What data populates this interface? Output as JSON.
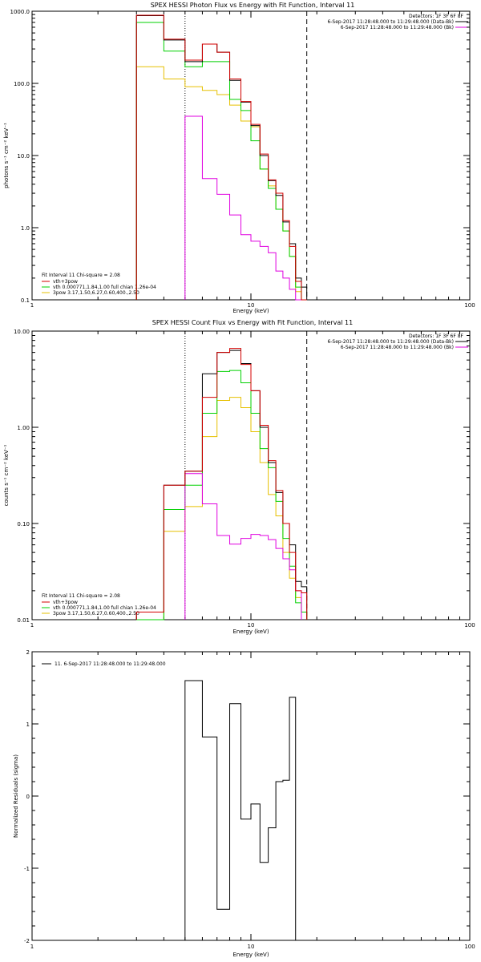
{
  "colors": {
    "data": "#000000",
    "total": "#d40000",
    "vth": "#00d000",
    "pow": "#e6c000",
    "bk": "#e000e0",
    "axis": "#000000"
  },
  "panels": [
    {
      "title": "SPEX HESSI Photon Flux vs Energy with Fit Function, Interval 11",
      "ylabel": "photons s⁻¹ cm⁻² keV⁻¹",
      "yticks": [
        "0.1",
        "1.0",
        "10.0",
        "100.0",
        "1000.0"
      ]
    },
    {
      "title": "SPEX HESSI Count Flux vs Energy with Fit Function, Interval 11",
      "ylabel": "counts s⁻¹ cm⁻² keV⁻¹",
      "yticks": [
        "0.01",
        "0.10",
        "1.00",
        "10.00"
      ]
    },
    {
      "title": "",
      "ylabel": "Normalized Residuals (sigma)",
      "yticks": [
        "-2",
        "-1",
        "0",
        "1",
        "2"
      ]
    }
  ],
  "xaxis": {
    "label": "Energy (keV)",
    "ticks": [
      "1",
      "10",
      "100"
    ]
  },
  "legend_top": {
    "detectors": "Detectors: 1F 3F 6F 8F",
    "line1": "6-Sep-2017 11:28:48.000 to 11:29:48.000 (Data-Bk)",
    "line2": "6-Sep-2017 11:28:48.000 to 11:29:48.000 (Bk)"
  },
  "legend_fit": {
    "header": "Fit Interval 11    Chi-square = 2.08",
    "l1": "vth+3pow",
    "l2": "vth 0.000771,1.84,1.00   full chian 1.26e-04",
    "l3": "3pow 3.17,1.50,6.27,0.60,400.,2.50"
  },
  "legend_resid": "11.   6-Sep-2017 11:28:48.000 to 11:29:48.000",
  "chart_data": [
    {
      "type": "line",
      "title": "SPEX HESSI Photon Flux vs Energy with Fit Function, Interval 11",
      "xlabel": "Energy (keV)",
      "ylabel": "photons s-1 cm-2 keV-1",
      "xscale": "log",
      "yscale": "log",
      "xlim": [
        1,
        100
      ],
      "ylim": [
        0.1,
        1000
      ],
      "bin_edges": [
        3.0,
        4.0,
        5.0,
        6.0,
        7.0,
        8.0,
        9.0,
        10.0,
        11.0,
        12.0,
        13.0,
        14.0,
        15.0,
        16.0,
        17.0,
        18.0
      ],
      "series": [
        {
          "name": "Data-Bk",
          "key": "data",
          "values": [
            870,
            400,
            200,
            350,
            270,
            110,
            55,
            26,
            10,
            4.5,
            2.8,
            1.2,
            0.6,
            0.2,
            0.15
          ]
        },
        {
          "name": "vth+3pow",
          "key": "total",
          "values": [
            880,
            410,
            210,
            350,
            270,
            115,
            56,
            27,
            10.5,
            4.6,
            3.0,
            1.25,
            0.55,
            0.18,
            0.1
          ]
        },
        {
          "name": "vth",
          "key": "vth",
          "values": [
            700,
            280,
            170,
            200,
            200,
            60,
            42,
            16,
            6.5,
            3.5,
            1.8,
            0.9,
            0.4,
            0.15,
            0.08
          ]
        },
        {
          "name": "3pow",
          "key": "pow",
          "values": [
            170,
            115,
            90,
            80,
            70,
            50,
            30,
            25,
            6.5,
            3.8,
            1.8,
            0.9,
            0.4,
            0.13,
            0.08
          ]
        },
        {
          "name": "Bk",
          "key": "bk",
          "values": [
            null,
            null,
            35,
            4.8,
            2.9,
            1.5,
            0.8,
            0.65,
            0.55,
            0.45,
            0.25,
            0.2,
            0.14,
            0.1,
            null
          ]
        }
      ],
      "vlines": [
        {
          "x": 5.0,
          "style": "dotted"
        },
        {
          "x": 18.0,
          "style": "dashed"
        }
      ]
    },
    {
      "type": "line",
      "title": "SPEX HESSI Count Flux vs Energy with Fit Function, Interval 11",
      "xlabel": "Energy (keV)",
      "ylabel": "counts s-1 cm-2 keV-1",
      "xscale": "log",
      "yscale": "log",
      "xlim": [
        1,
        100
      ],
      "ylim": [
        0.01,
        10
      ],
      "bin_edges": [
        3.0,
        4.0,
        5.0,
        6.0,
        7.0,
        8.0,
        9.0,
        10.0,
        11.0,
        12.0,
        13.0,
        14.0,
        15.0,
        16.0,
        17.0,
        18.0
      ],
      "series": [
        {
          "name": "Data-Bk",
          "key": "data",
          "values": [
            0.012,
            0.25,
            0.35,
            3.6,
            6.0,
            6.3,
            4.6,
            2.4,
            1.0,
            0.43,
            0.21,
            0.1,
            0.06,
            0.025,
            0.022
          ]
        },
        {
          "name": "vth+3pow",
          "key": "total",
          "values": [
            0.012,
            0.25,
            0.35,
            2.05,
            6.0,
            6.6,
            4.5,
            2.4,
            1.05,
            0.45,
            0.22,
            0.1,
            0.05,
            0.02,
            0.019
          ]
        },
        {
          "name": "vth",
          "key": "vth",
          "values": [
            0.01,
            0.14,
            0.25,
            1.4,
            3.8,
            3.9,
            2.9,
            1.4,
            0.6,
            0.38,
            0.17,
            0.07,
            0.036,
            0.015,
            0.012
          ]
        },
        {
          "name": "3pow",
          "key": "pow",
          "values": [
            0.01,
            0.083,
            0.15,
            0.8,
            1.9,
            2.05,
            1.6,
            0.9,
            0.43,
            0.2,
            0.12,
            0.05,
            0.027,
            0.017,
            0.012
          ]
        },
        {
          "name": "Bk",
          "key": "bk",
          "values": [
            null,
            null,
            0.33,
            0.16,
            0.075,
            0.061,
            0.07,
            0.077,
            0.075,
            0.068,
            0.055,
            0.043,
            0.033,
            0.02,
            null
          ]
        }
      ],
      "vlines": [
        {
          "x": 5.0,
          "style": "dotted"
        },
        {
          "x": 18.0,
          "style": "dashed"
        }
      ]
    },
    {
      "type": "line",
      "title": "",
      "xlabel": "Energy (keV)",
      "ylabel": "Normalized Residuals (sigma)",
      "xscale": "log",
      "yscale": "linear",
      "xlim": [
        1,
        100
      ],
      "ylim": [
        -2,
        2
      ],
      "bin_edges": [
        5.0,
        6.0,
        7.0,
        8.0,
        9.0,
        10.0,
        11.0,
        12.0,
        13.0,
        14.0,
        15.0,
        16.0,
        17.0,
        18.0
      ],
      "series": [
        {
          "name": "11.",
          "key": "data",
          "values": [
            1.6,
            0.82,
            -1.57,
            1.28,
            -0.32,
            -0.11,
            -0.92,
            -0.44,
            0.2,
            0.22,
            1.37,
            null,
            null
          ]
        }
      ],
      "step_values": [
        1.6,
        0.82,
        -1.57,
        1.28,
        -0.32,
        -0.11,
        -0.92,
        -0.44,
        0.2,
        0.22,
        1.37,
        null,
        null
      ]
    }
  ]
}
